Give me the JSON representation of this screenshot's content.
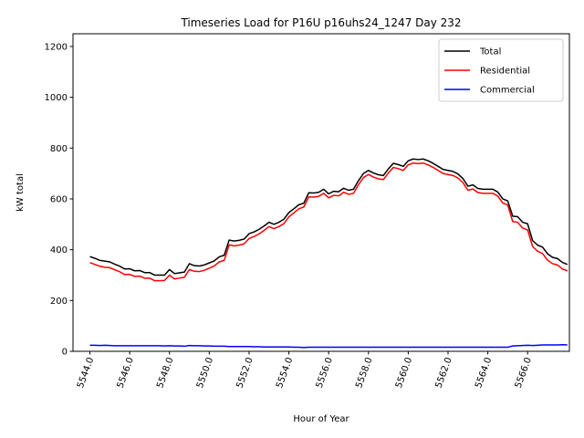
{
  "chart_data": {
    "type": "line",
    "title": "Timeseries Load for P16U p16uhs24_1247  Day 232",
    "xlabel": "Hour of Year",
    "ylabel": "kW total",
    "xlim": [
      5543.15,
      5568.1
    ],
    "ylim": [
      0,
      1250
    ],
    "xticks": [
      5544,
      5546,
      5548,
      5550,
      5552,
      5554,
      5556,
      5558,
      5560,
      5562,
      5564,
      5566
    ],
    "xtick_labels": [
      "5544.0",
      "5546.0",
      "5548.0",
      "5550.0",
      "5552.0",
      "5554.0",
      "5556.0",
      "5558.0",
      "5560.0",
      "5562.0",
      "5564.0",
      "5566.0"
    ],
    "yticks": [
      0,
      200,
      400,
      600,
      800,
      1000,
      1200
    ],
    "ytick_labels": [
      "0",
      "200",
      "400",
      "600",
      "800",
      "1000",
      "1200"
    ],
    "legend_position": "top-right",
    "x_start": 5544.0,
    "x_step": 0.25,
    "series": [
      {
        "name": "Total",
        "color": "#000000",
        "values": [
          373,
          366,
          358,
          355,
          352,
          343,
          335,
          324,
          325,
          317,
          318,
          310,
          310,
          300,
          300,
          300,
          322,
          306,
          309,
          312,
          345,
          337,
          336,
          340,
          348,
          356,
          372,
          378,
          438,
          434,
          437,
          442,
          463,
          470,
          480,
          493,
          508,
          500,
          508,
          520,
          546,
          561,
          577,
          583,
          624,
          623,
          626,
          638,
          620,
          630,
          628,
          642,
          634,
          638,
          672,
          700,
          712,
          702,
          695,
          692,
          718,
          740,
          735,
          728,
          750,
          757,
          755,
          757,
          750,
          740,
          728,
          716,
          712,
          708,
          698,
          680,
          650,
          655,
          641,
          638,
          638,
          638,
          627,
          600,
          592,
          532,
          530,
          508,
          502,
          436,
          418,
          410,
          384,
          370,
          365,
          350,
          342
        ]
      },
      {
        "name": "Residential",
        "color": "#ff0000",
        "values": [
          349,
          342,
          335,
          331,
          329,
          321,
          313,
          302,
          303,
          295,
          296,
          288,
          288,
          278,
          278,
          279,
          300,
          285,
          288,
          292,
          322,
          315,
          314,
          319,
          327,
          336,
          352,
          358,
          419,
          415,
          418,
          423,
          444,
          452,
          462,
          476,
          491,
          483,
          491,
          503,
          529,
          545,
          561,
          568,
          608,
          607,
          610,
          622,
          604,
          614,
          612,
          626,
          618,
          622,
          656,
          684,
          696,
          686,
          679,
          676,
          702,
          724,
          719,
          712,
          734,
          741,
          739,
          741,
          734,
          724,
          712,
          700,
          696,
          692,
          682,
          664,
          634,
          639,
          625,
          622,
          622,
          622,
          611,
          584,
          576,
          511,
          508,
          485,
          478,
          413,
          394,
          385,
          359,
          345,
          340,
          324,
          317
        ]
      },
      {
        "name": "Commercial",
        "color": "#0000ff",
        "values": [
          24,
          24,
          23,
          24,
          23,
          22,
          22,
          22,
          22,
          22,
          22,
          22,
          22,
          22,
          22,
          21,
          22,
          21,
          21,
          20,
          23,
          22,
          22,
          21,
          21,
          20,
          20,
          20,
          19,
          19,
          19,
          19,
          19,
          18,
          18,
          17,
          17,
          17,
          17,
          17,
          17,
          16,
          16,
          15,
          16,
          16,
          16,
          16,
          16,
          16,
          16,
          16,
          16,
          16,
          16,
          16,
          16,
          16,
          16,
          16,
          16,
          16,
          16,
          16,
          16,
          16,
          16,
          16,
          16,
          16,
          16,
          16,
          16,
          16,
          16,
          16,
          16,
          16,
          16,
          16,
          16,
          16,
          16,
          16,
          16,
          21,
          22,
          23,
          24,
          23,
          24,
          25,
          25,
          25,
          25,
          26,
          25
        ]
      }
    ]
  }
}
